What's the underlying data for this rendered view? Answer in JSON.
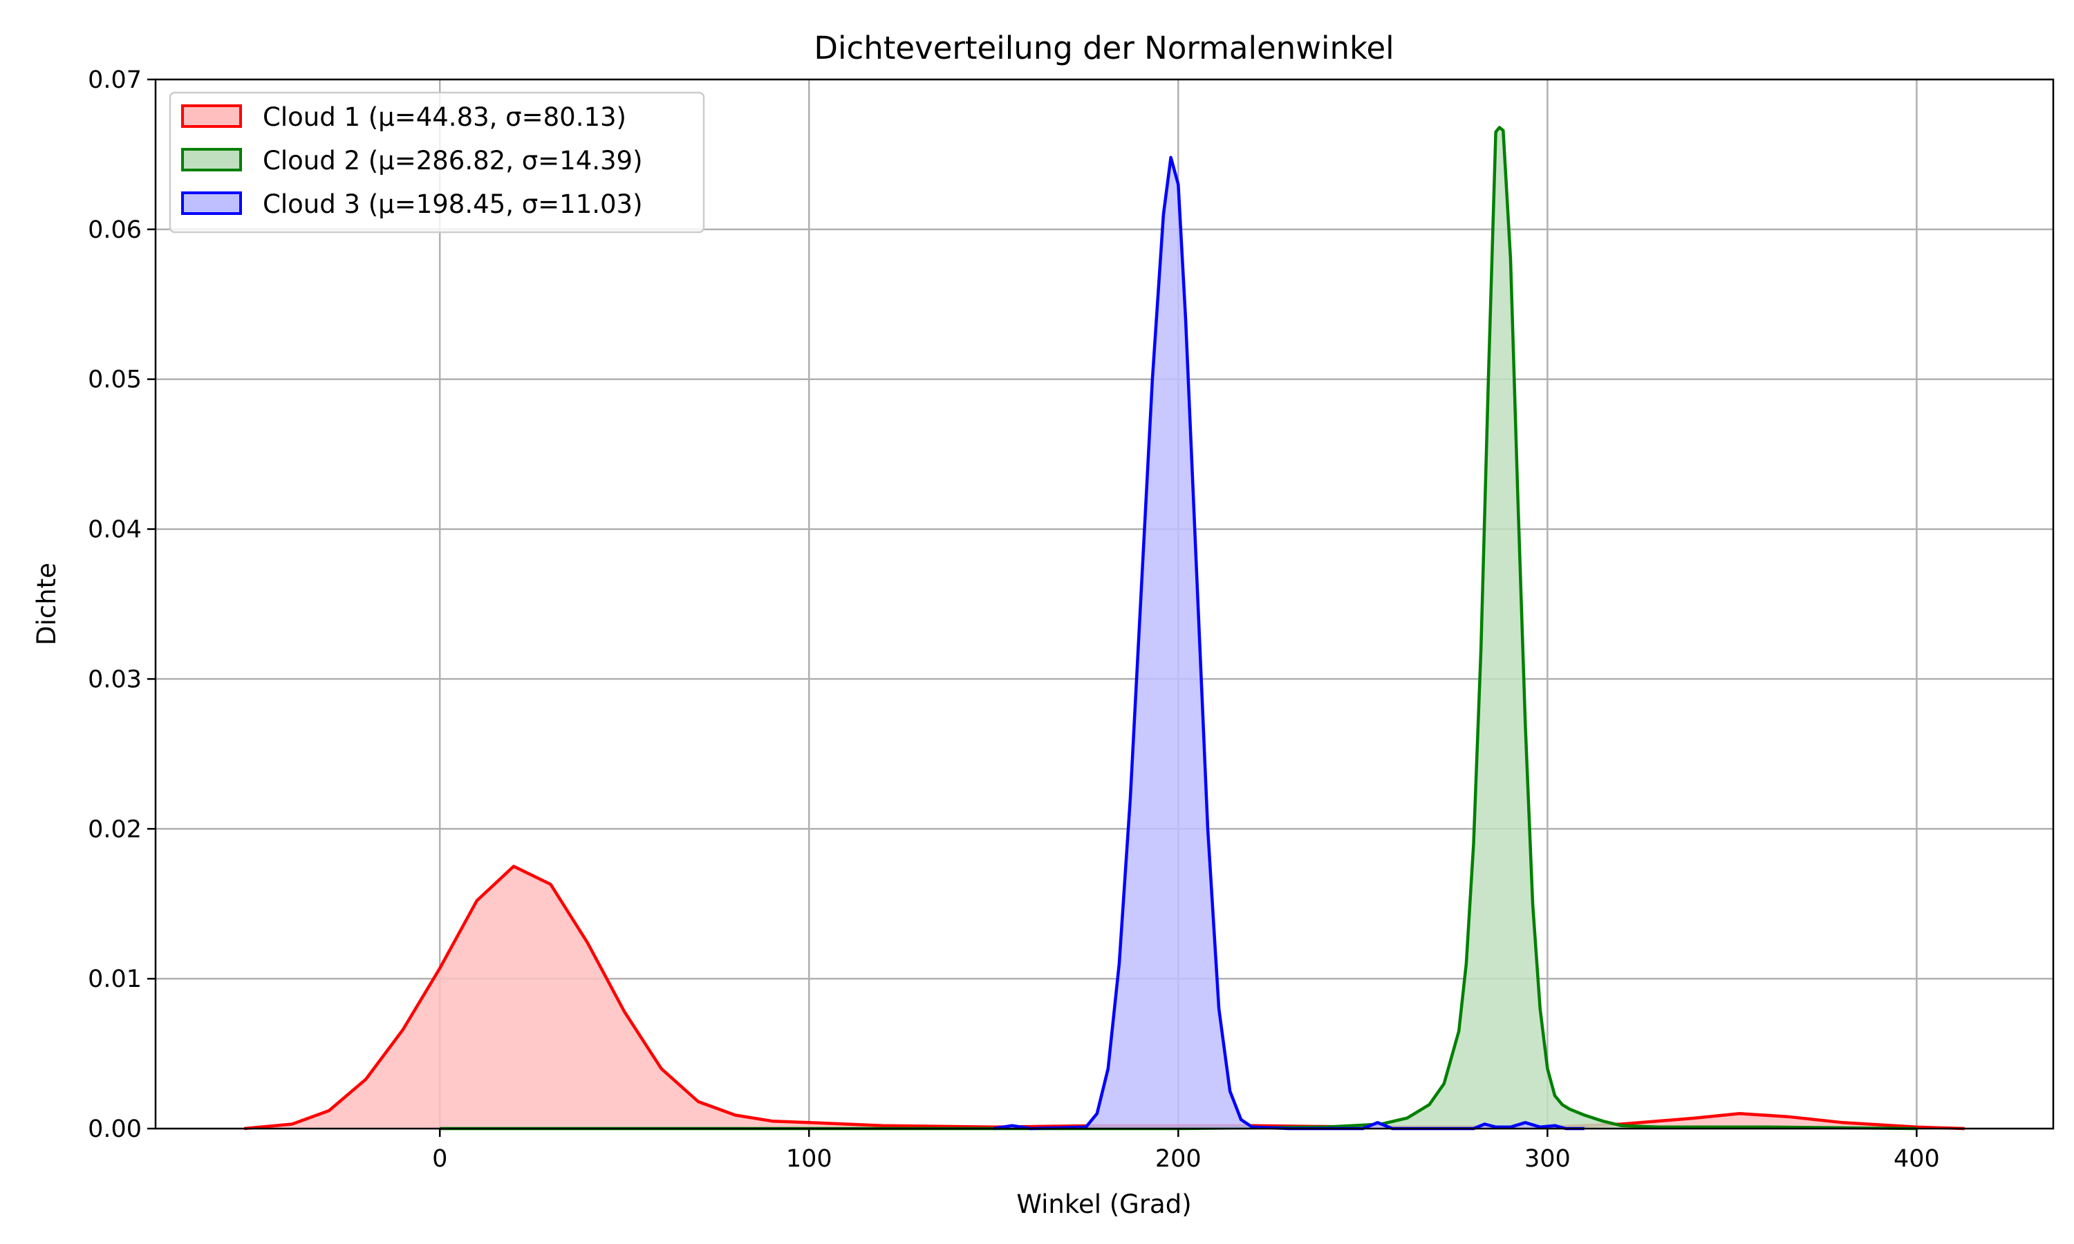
{
  "chart_data": {
    "type": "area",
    "title": "Dichteverteilung der Normalenwinkel",
    "xlabel": "Winkel (Grad)",
    "ylabel": "Dichte",
    "xlim": [
      -77,
      437
    ],
    "ylim": [
      0,
      0.07
    ],
    "grid": true,
    "legend_position": "top-left",
    "x_ticks": [
      0,
      100,
      200,
      300,
      400
    ],
    "x_tick_labels": [
      "0",
      "100",
      "200",
      "300",
      "400"
    ],
    "y_ticks": [
      0,
      0.01,
      0.02,
      0.03,
      0.04,
      0.05,
      0.06,
      0.07
    ],
    "y_tick_labels": [
      "0.00",
      "0.01",
      "0.02",
      "0.03",
      "0.04",
      "0.05",
      "0.06",
      "0.07"
    ],
    "series": [
      {
        "name": "Cloud 1 (μ=44.83, σ=80.13)",
        "color": "#ff0000",
        "fill": "#ffbfbf",
        "x": [
          -53,
          -40,
          -30,
          -20,
          -10,
          0,
          10,
          20,
          30,
          40,
          50,
          60,
          70,
          80,
          90,
          100,
          120,
          150,
          180,
          200,
          220,
          250,
          280,
          300,
          320,
          340,
          352,
          365,
          380,
          400,
          413
        ],
        "y": [
          0.0,
          0.0003,
          0.0012,
          0.0033,
          0.0066,
          0.0107,
          0.0152,
          0.0175,
          0.0163,
          0.0124,
          0.0078,
          0.004,
          0.0018,
          0.0009,
          0.0005,
          0.0004,
          0.0002,
          0.0001,
          0.0002,
          0.0002,
          0.0002,
          0.0001,
          0.0001,
          0.0001,
          0.0003,
          0.0007,
          0.001,
          0.0008,
          0.0004,
          0.0001,
          0.0
        ]
      },
      {
        "name": "Cloud 2 (μ=286.82, σ=14.39)",
        "color": "#008000",
        "fill": "#bfdfbf",
        "x": [
          0,
          200,
          240,
          255,
          262,
          268,
          272,
          276,
          278,
          280,
          282,
          284,
          286,
          287,
          288,
          290,
          292,
          294,
          296,
          298,
          300,
          302,
          304,
          306,
          310,
          315,
          320,
          330,
          340,
          360,
          400
        ],
        "y": [
          0.0,
          0.0,
          0.0001,
          0.0003,
          0.0007,
          0.0016,
          0.003,
          0.0065,
          0.011,
          0.019,
          0.032,
          0.05,
          0.0665,
          0.0668,
          0.0666,
          0.058,
          0.042,
          0.027,
          0.015,
          0.008,
          0.004,
          0.0022,
          0.0016,
          0.0013,
          0.0009,
          0.0005,
          0.0002,
          0.0001,
          0.0001,
          0.0001,
          0.0
        ]
      },
      {
        "name": "Cloud 3 (μ=198.45, σ=11.03)",
        "color": "#0000ff",
        "fill": "#bfbfff",
        "x": [
          150,
          155,
          160,
          175,
          178,
          181,
          184,
          187,
          190,
          193,
          196,
          198,
          200,
          202,
          205,
          208,
          211,
          214,
          217,
          220,
          230,
          250,
          254,
          258,
          280,
          283,
          286,
          290,
          294,
          298,
          302,
          305,
          310
        ],
        "y": [
          0.0,
          0.0002,
          0.0,
          0.0001,
          0.001,
          0.004,
          0.011,
          0.022,
          0.036,
          0.05,
          0.061,
          0.0648,
          0.063,
          0.054,
          0.037,
          0.02,
          0.008,
          0.0025,
          0.0006,
          0.0001,
          0.0,
          0.0,
          0.0004,
          0.0,
          0.0,
          0.0003,
          0.0001,
          0.0001,
          0.0004,
          0.0001,
          0.0002,
          0.0,
          0.0
        ]
      }
    ]
  }
}
